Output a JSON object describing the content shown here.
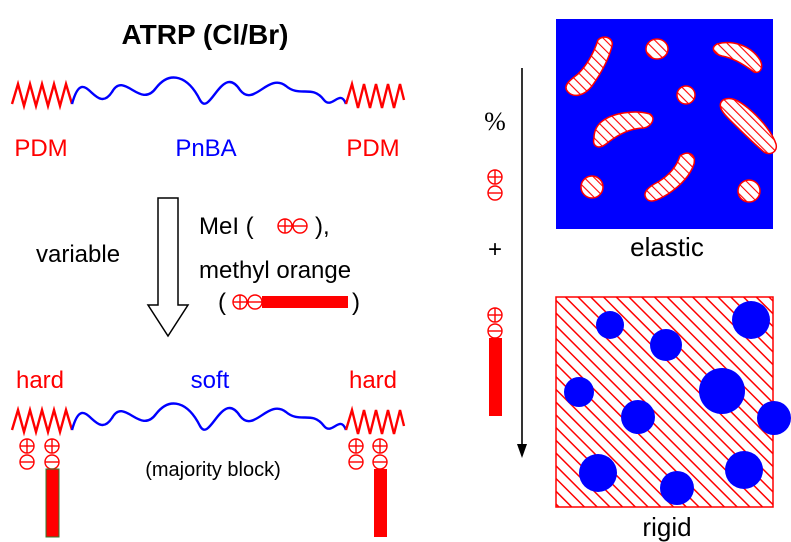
{
  "title": "ATRP (Cl/Br)",
  "top_chain": {
    "left_label": "PDM",
    "middle_label": "PnBA",
    "right_label": "PDM"
  },
  "process": {
    "arrow_label": "variable",
    "additive_1": "MeI (",
    "additive_1_close": "),",
    "additive_2": "methyl orange",
    "open_paren": "(",
    "close_paren": ")"
  },
  "bottom_chain": {
    "left_label": "hard",
    "middle_label": "soft",
    "right_label": "hard",
    "note": "(majority block)"
  },
  "scale": {
    "percent_label": "%",
    "plus_label": "+"
  },
  "panels": {
    "top_caption": "elastic",
    "bottom_caption": "rigid"
  },
  "colors": {
    "hard_block": "#ff0000",
    "soft_block": "#0000ff",
    "panel_fill": "#0000ff",
    "hatch": "#ff0000",
    "text": "#000000"
  },
  "icons": {
    "plus_charge": "circled-plus",
    "minus_charge": "circled-minus",
    "process_arrow": "hollow-down-arrow",
    "scale_arrow": "thin-down-arrow"
  }
}
